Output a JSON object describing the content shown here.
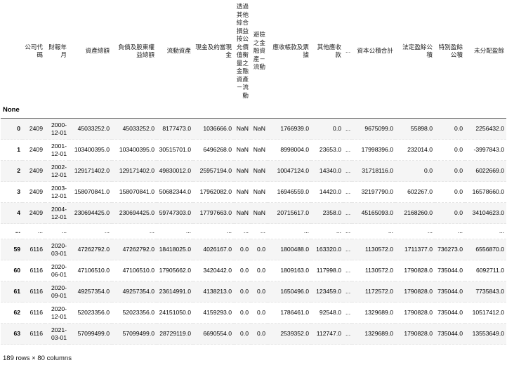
{
  "table": {
    "index_name": "None",
    "columns": [
      "公司代碼",
      "財報年月",
      "資產總額",
      "負債及股東權益總額",
      "流動資產",
      "現金及約當現金",
      "透過其他綜合損益按公允價值衡量之金融資產－流動",
      "避險之金融資產－流動",
      "應收帳款及票據",
      "其他應收款",
      "...",
      "資本公積合計",
      "法定盈餘公積",
      "特別盈餘公積",
      "未分配盈餘"
    ],
    "rows": [
      {
        "index": "0",
        "cells": [
          "2409",
          "2000-12-01",
          "45033252.0",
          "45033252.0",
          "8177473.0",
          "1036666.0",
          "NaN",
          "NaN",
          "1766939.0",
          "0.0",
          "...",
          "9675099.0",
          "55898.0",
          "0.0",
          "2256432.0"
        ]
      },
      {
        "index": "1",
        "cells": [
          "2409",
          "2001-12-01",
          "103400395.0",
          "103400395.0",
          "30515701.0",
          "6496268.0",
          "NaN",
          "NaN",
          "8998004.0",
          "23653.0",
          "...",
          "17998396.0",
          "232014.0",
          "0.0",
          "-3997843.0"
        ]
      },
      {
        "index": "2",
        "cells": [
          "2409",
          "2002-12-01",
          "129171402.0",
          "129171402.0",
          "49830012.0",
          "25957194.0",
          "NaN",
          "NaN",
          "10047124.0",
          "14340.0",
          "...",
          "31718116.0",
          "0.0",
          "0.0",
          "6022669.0"
        ]
      },
      {
        "index": "3",
        "cells": [
          "2409",
          "2003-12-01",
          "158070841.0",
          "158070841.0",
          "50682344.0",
          "17962082.0",
          "NaN",
          "NaN",
          "16946559.0",
          "14420.0",
          "...",
          "32197790.0",
          "602267.0",
          "0.0",
          "16578660.0"
        ]
      },
      {
        "index": "4",
        "cells": [
          "2409",
          "2004-12-01",
          "230694425.0",
          "230694425.0",
          "59747303.0",
          "17797663.0",
          "NaN",
          "NaN",
          "20715617.0",
          "2358.0",
          "...",
          "45165093.0",
          "2168260.0",
          "0.0",
          "34104623.0"
        ]
      },
      {
        "index": "...",
        "cells": [
          "...",
          "...",
          "...",
          "...",
          "...",
          "...",
          "...",
          "...",
          "...",
          "...",
          "...",
          "...",
          "...",
          "...",
          "..."
        ]
      },
      {
        "index": "59",
        "cells": [
          "6116",
          "2020-03-01",
          "47262792.0",
          "47262792.0",
          "18418025.0",
          "4026167.0",
          "0.0",
          "0.0",
          "1800488.0",
          "163320.0",
          "...",
          "1130572.0",
          "1711377.0",
          "736273.0",
          "6556870.0"
        ]
      },
      {
        "index": "60",
        "cells": [
          "6116",
          "2020-06-01",
          "47106510.0",
          "47106510.0",
          "17905662.0",
          "3420442.0",
          "0.0",
          "0.0",
          "1809163.0",
          "117998.0",
          "...",
          "1130572.0",
          "1790828.0",
          "735044.0",
          "6092711.0"
        ]
      },
      {
        "index": "61",
        "cells": [
          "6116",
          "2020-09-01",
          "49257354.0",
          "49257354.0",
          "23614991.0",
          "4138213.0",
          "0.0",
          "0.0",
          "1650496.0",
          "123459.0",
          "...",
          "1172572.0",
          "1790828.0",
          "735044.0",
          "7735843.0"
        ]
      },
      {
        "index": "62",
        "cells": [
          "6116",
          "2020-12-01",
          "52023356.0",
          "52023356.0",
          "24151050.0",
          "4159293.0",
          "0.0",
          "0.0",
          "1786461.0",
          "92548.0",
          "...",
          "1329689.0",
          "1790828.0",
          "735044.0",
          "10517412.0"
        ]
      },
      {
        "index": "63",
        "cells": [
          "6116",
          "2021-03-01",
          "57099499.0",
          "57099499.0",
          "28729119.0",
          "6690554.0",
          "0.0",
          "0.0",
          "2539352.0",
          "112747.0",
          "...",
          "1329689.0",
          "1790828.0",
          "735044.0",
          "13553649.0"
        ]
      }
    ]
  },
  "footer": "189 rows × 80 columns"
}
